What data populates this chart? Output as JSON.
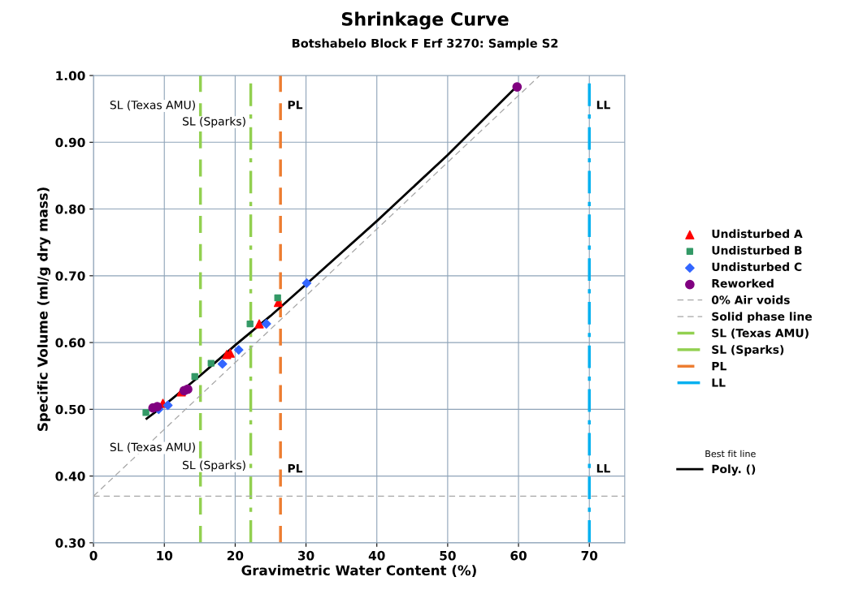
{
  "chart_data": {
    "type": "scatter",
    "title": "Shrinkage Curve",
    "subtitle": "Botshabelo Block F Erf 3270: Sample S2",
    "xlabel": "Gravimetric Water Content (%)",
    "ylabel": "Specific Volume (ml/g dry mass)",
    "xlim": [
      0,
      75
    ],
    "xticks": [
      0,
      10,
      20,
      30,
      40,
      50,
      60,
      70
    ],
    "ylim": [
      0.3,
      1.0
    ],
    "yticks": [
      {
        "value": 0.3,
        "label": "0.30"
      },
      {
        "value": 0.4,
        "label": "0.40"
      },
      {
        "value": 0.5,
        "label": "0.50"
      },
      {
        "value": 0.6,
        "label": "0.60"
      },
      {
        "value": 0.7,
        "label": "0.70"
      },
      {
        "value": 0.8,
        "label": "0.80"
      },
      {
        "value": 0.9,
        "label": "0.90"
      },
      {
        "value": 1.0,
        "label": "1.00"
      }
    ],
    "grid": true,
    "legend": "right",
    "legend_title": "Best fit line",
    "series": [
      {
        "name": "Undisturbed A",
        "marker": "triangle",
        "color": "#ff0000",
        "x": [
          9.8,
          12.4,
          18.8,
          19.3,
          23.4,
          26.1
        ],
        "values": [
          0.509,
          0.526,
          0.582,
          0.584,
          0.628,
          0.66
        ]
      },
      {
        "name": "Undisturbed B",
        "marker": "square",
        "color": "#339966",
        "x": [
          7.4,
          14.3,
          16.6,
          22.1,
          26.0
        ],
        "values": [
          0.495,
          0.549,
          0.569,
          0.628,
          0.667
        ]
      },
      {
        "name": "Undisturbed C",
        "marker": "diamond",
        "color": "#3366ff",
        "x": [
          9.2,
          10.5,
          18.2,
          20.5,
          24.4,
          30.1
        ],
        "values": [
          0.5,
          0.506,
          0.568,
          0.589,
          0.628,
          0.689
        ]
      },
      {
        "name": "Reworked",
        "marker": "circle",
        "color": "#800080",
        "x": [
          8.4,
          9.0,
          12.8,
          13.3,
          59.8
        ],
        "values": [
          0.502,
          0.504,
          0.528,
          0.53,
          0.983
        ]
      },
      {
        "name": "0% Air voids",
        "type": "line",
        "line_style": "dashed",
        "color": "#a6a6a6",
        "x": [
          0,
          63
        ],
        "values": [
          0.37,
          1.0
        ]
      },
      {
        "name": "Solid phase line",
        "type": "line",
        "line_style": "dashed",
        "color": "#a6a6a6",
        "x": [
          0,
          75
        ],
        "values": [
          0.37,
          0.37
        ]
      },
      {
        "name": "Poly. ()",
        "type": "line",
        "line_style": "solid",
        "color": "#000000",
        "x": [
          7.5,
          10,
          15,
          20,
          25,
          30,
          40,
          50,
          59.4
        ],
        "values": [
          0.486,
          0.506,
          0.55,
          0.596,
          0.64,
          0.687,
          0.782,
          0.881,
          0.98
        ]
      }
    ],
    "ref_lines": [
      {
        "axis": "x",
        "value": 15.1,
        "label": "SL (Texas AMU)",
        "color": "#92d050",
        "line_style": "dashed"
      },
      {
        "axis": "x",
        "value": 22.2,
        "label": "SL (Sparks)",
        "color": "#92d050",
        "line_style": "dashdot"
      },
      {
        "axis": "x",
        "value": 26.4,
        "label": "PL",
        "color": "#ed7d31",
        "line_style": "dashed"
      },
      {
        "axis": "x",
        "value": 70,
        "label": "LL",
        "color": "#00b0f0",
        "line_style": "dashdot"
      }
    ],
    "annotations": [
      {
        "text": "SL (Texas AMU)",
        "x": 15.1,
        "y": 0.442
      },
      {
        "text": "SL (Sparks)",
        "x": 22.2,
        "y": 0.415
      },
      {
        "text": "PL",
        "x": 26.4,
        "y": 0.41
      },
      {
        "text": "LL",
        "x": 70,
        "y": 0.41
      }
    ]
  }
}
